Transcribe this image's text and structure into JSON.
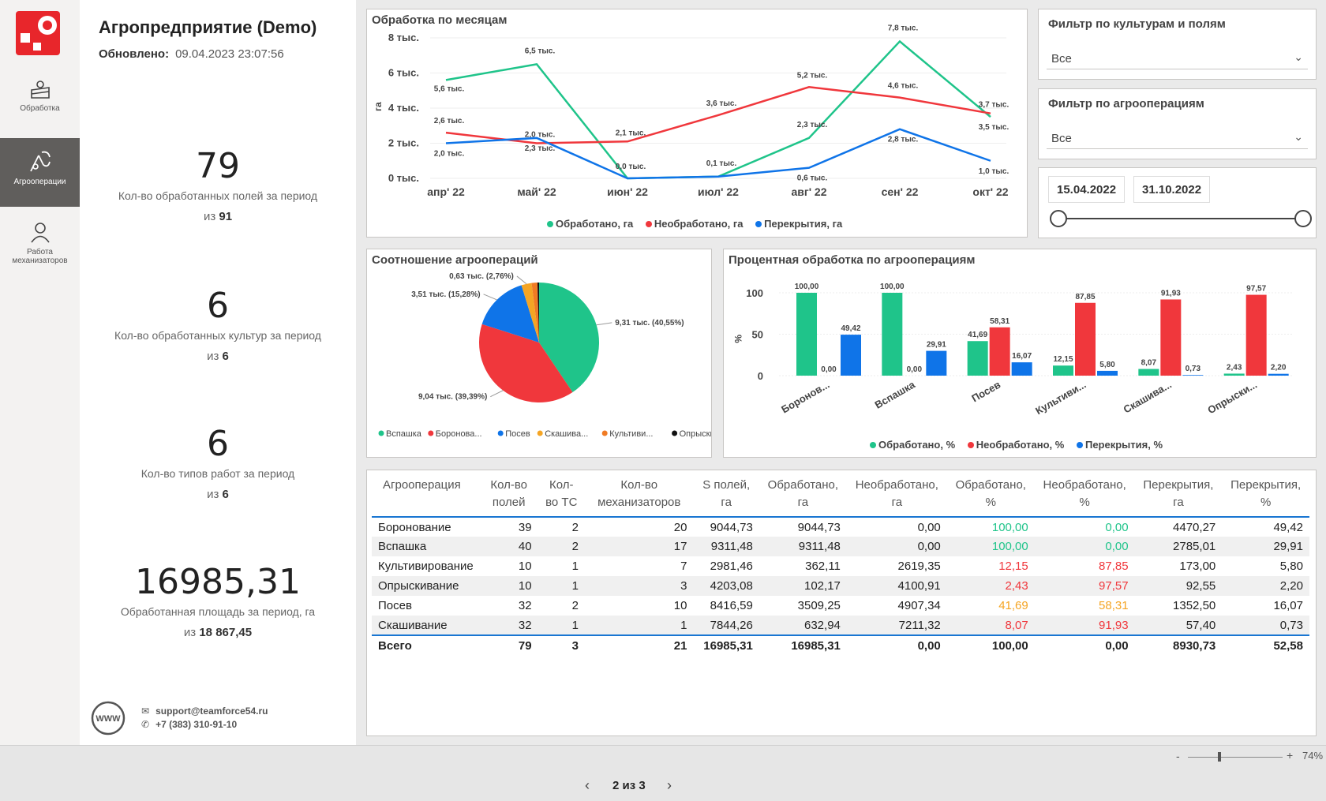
{
  "nav": {
    "items": [
      {
        "label": "Обработка",
        "icon": "field-processing-icon"
      },
      {
        "label": "Агрооперации",
        "icon": "agro-operations-icon"
      },
      {
        "label": "Работа механизаторов",
        "icon": "user-icon"
      }
    ]
  },
  "header": {
    "title": "Агропредприятие (Demo)",
    "updated_label": "Обновлено:",
    "updated_value": "09.04.2023 23:07:56"
  },
  "kpis": [
    {
      "value": "79",
      "label": "Кол-во обработанных полей за период",
      "of_prefix": "из",
      "of_value": "91"
    },
    {
      "value": "6",
      "label": "Кол-во обработанных культур за период",
      "of_prefix": "из",
      "of_value": "6"
    },
    {
      "value": "6",
      "label": "Кол-во типов работ за период",
      "of_prefix": "из",
      "of_value": "6"
    },
    {
      "value": "16985,31",
      "label": "Обработанная площадь за период, га",
      "of_prefix": "из",
      "of_value": "18 867,45"
    }
  ],
  "contact": {
    "email": "support@teamforce54.ru",
    "phone": "+7 (383) 310-91-10"
  },
  "filters": {
    "crops": {
      "title": "Фильтр по культурам и полям",
      "value": "Все"
    },
    "operations": {
      "title": "Фильтр по агрооперациям",
      "value": "Все"
    },
    "date_start": "15.04.2022",
    "date_end": "31.10.2022"
  },
  "colors": {
    "green": "#1fc48a",
    "red": "#f0373c",
    "blue": "#0f74e8",
    "orange": "#f5a524",
    "black": "#111111"
  },
  "chart_data": [
    {
      "type": "line",
      "title": "Обработка по месяцам",
      "ylabel": "га",
      "x": [
        "апр' 22",
        "май' 22",
        "июн' 22",
        "июл' 22",
        "авг' 22",
        "сен' 22",
        "окт' 22"
      ],
      "yticks": [
        "0 тыс.",
        "2 тыс.",
        "4 тыс.",
        "6 тыс.",
        "8 тыс."
      ],
      "ylim": [
        0,
        8000
      ],
      "series": [
        {
          "name": "Обработано, га",
          "color": "#1fc48a",
          "values": [
            5600,
            6500,
            0,
            100,
            2300,
            7800,
            3500
          ],
          "labels": [
            "5,6 тыс.",
            "6,5 тыс.",
            "0,0 тыс.",
            "0,1 тыс.",
            "2,3 тыс.",
            "7,8 тыс.",
            "3,5 тыс."
          ]
        },
        {
          "name": "Необработано, га",
          "color": "#f0373c",
          "values": [
            2600,
            2000,
            2100,
            3600,
            5200,
            4600,
            3700
          ],
          "labels": [
            "2,6 тыс.",
            "2,0 тыс.",
            "2,1 тыс.",
            "3,6 тыс.",
            "5,2 тыс.",
            "4,6 тыс.",
            "3,7 тыс."
          ]
        },
        {
          "name": "Перекрытия, га",
          "color": "#0f74e8",
          "values": [
            2000,
            2300,
            0,
            100,
            600,
            2800,
            1000
          ],
          "labels": [
            "2,0 тыс.",
            "2,3 тыс.",
            "",
            "",
            "0,6 тыс.",
            "2,8 тыс.",
            "1,0 тыс."
          ]
        }
      ]
    },
    {
      "type": "pie",
      "title": "Соотношение агроопераций",
      "slices": [
        {
          "name": "Вспашка",
          "value": 9310,
          "pct": 40.55,
          "label": "9,31 тыс. (40,55%)",
          "color": "#1fc48a"
        },
        {
          "name": "Боронова...",
          "value": 9040,
          "pct": 39.39,
          "label": "9,04 тыс. (39,39%)",
          "color": "#f0373c"
        },
        {
          "name": "Посев",
          "value": 3510,
          "pct": 15.28,
          "label": "3,51 тыс. (15,28%)",
          "color": "#0f74e8"
        },
        {
          "name": "Скашива...",
          "value": 630,
          "pct": 2.76,
          "label": "0,63 тыс. (2,76%)",
          "color": "#f5a524"
        },
        {
          "name": "Культиви...",
          "value": 360,
          "pct": 1.6,
          "label": "",
          "color": "#f07b24"
        },
        {
          "name": "Опрыски...",
          "value": 100,
          "pct": 0.45,
          "label": "",
          "color": "#111111"
        }
      ]
    },
    {
      "type": "bar",
      "title": "Процентная обработка по агрооперациям",
      "ylabel": "%",
      "categories": [
        "Боронов...",
        "Вспашка",
        "Посев",
        "Культиви...",
        "Скашива...",
        "Опрыски..."
      ],
      "yticks": [
        "0",
        "50",
        "100"
      ],
      "ylim": [
        0,
        100
      ],
      "series": [
        {
          "name": "Обработано, %",
          "color": "#1fc48a",
          "values": [
            100.0,
            100.0,
            41.69,
            12.15,
            8.07,
            2.43
          ],
          "labels": [
            "100,00",
            "100,00",
            "41,69",
            "12,15",
            "8,07",
            "2,43"
          ]
        },
        {
          "name": "Необработано, %",
          "color": "#f0373c",
          "values": [
            0.0,
            0.0,
            58.31,
            87.85,
            91.93,
            97.57
          ],
          "labels": [
            "0,00",
            "0,00",
            "58,31",
            "87,85",
            "91,93",
            "97,57"
          ]
        },
        {
          "name": "Перекрытия, %",
          "color": "#0f74e8",
          "values": [
            49.42,
            29.91,
            16.07,
            5.8,
            0.73,
            2.2
          ],
          "labels": [
            "49,42",
            "29,91",
            "16,07",
            "5,80",
            "0,73",
            "2,20"
          ]
        }
      ]
    }
  ],
  "table": {
    "headers": [
      "Агрооперация",
      "Кол-во полей",
      "Кол-во ТС",
      "Кол-во механизаторов",
      "S полей, га",
      "Обработано, га",
      "Необработано, га",
      "Обработано, %",
      "Необработано, %",
      "Перекрытия, га",
      "Перекрытия, %"
    ],
    "rows": [
      [
        "Боронование",
        "39",
        "2",
        "20",
        "9044,73",
        "9044,73",
        "0,00",
        "100,00",
        "0,00",
        "4470,27",
        "49,42"
      ],
      [
        "Вспашка",
        "40",
        "2",
        "17",
        "9311,48",
        "9311,48",
        "0,00",
        "100,00",
        "0,00",
        "2785,01",
        "29,91"
      ],
      [
        "Культивирование",
        "10",
        "1",
        "7",
        "2981,46",
        "362,11",
        "2619,35",
        "12,15",
        "87,85",
        "173,00",
        "5,80"
      ],
      [
        "Опрыскивание",
        "10",
        "1",
        "3",
        "4203,08",
        "102,17",
        "4100,91",
        "2,43",
        "97,57",
        "92,55",
        "2,20"
      ],
      [
        "Посев",
        "32",
        "2",
        "10",
        "8416,59",
        "3509,25",
        "4907,34",
        "41,69",
        "58,31",
        "1352,50",
        "16,07"
      ],
      [
        "Скашивание",
        "32",
        "1",
        "1",
        "7844,26",
        "632,94",
        "7211,32",
        "8,07",
        "91,93",
        "57,40",
        "0,73"
      ]
    ],
    "row_colors": [
      [
        "#1fc48a",
        "#1fc48a"
      ],
      [
        "#1fc48a",
        "#1fc48a"
      ],
      [
        "#f0373c",
        "#f0373c"
      ],
      [
        "#f0373c",
        "#f0373c"
      ],
      [
        "#f5a524",
        "#f5a524"
      ],
      [
        "#f0373c",
        "#f0373c"
      ]
    ],
    "total": [
      "Всего",
      "79",
      "3",
      "21",
      "16985,31",
      "16985,31",
      "0,00",
      "100,00",
      "0,00",
      "8930,73",
      "52,58"
    ]
  },
  "footer": {
    "page_label": "2 из 3",
    "zoom": "74%",
    "zoom_minus": "-",
    "zoom_plus": "+"
  }
}
